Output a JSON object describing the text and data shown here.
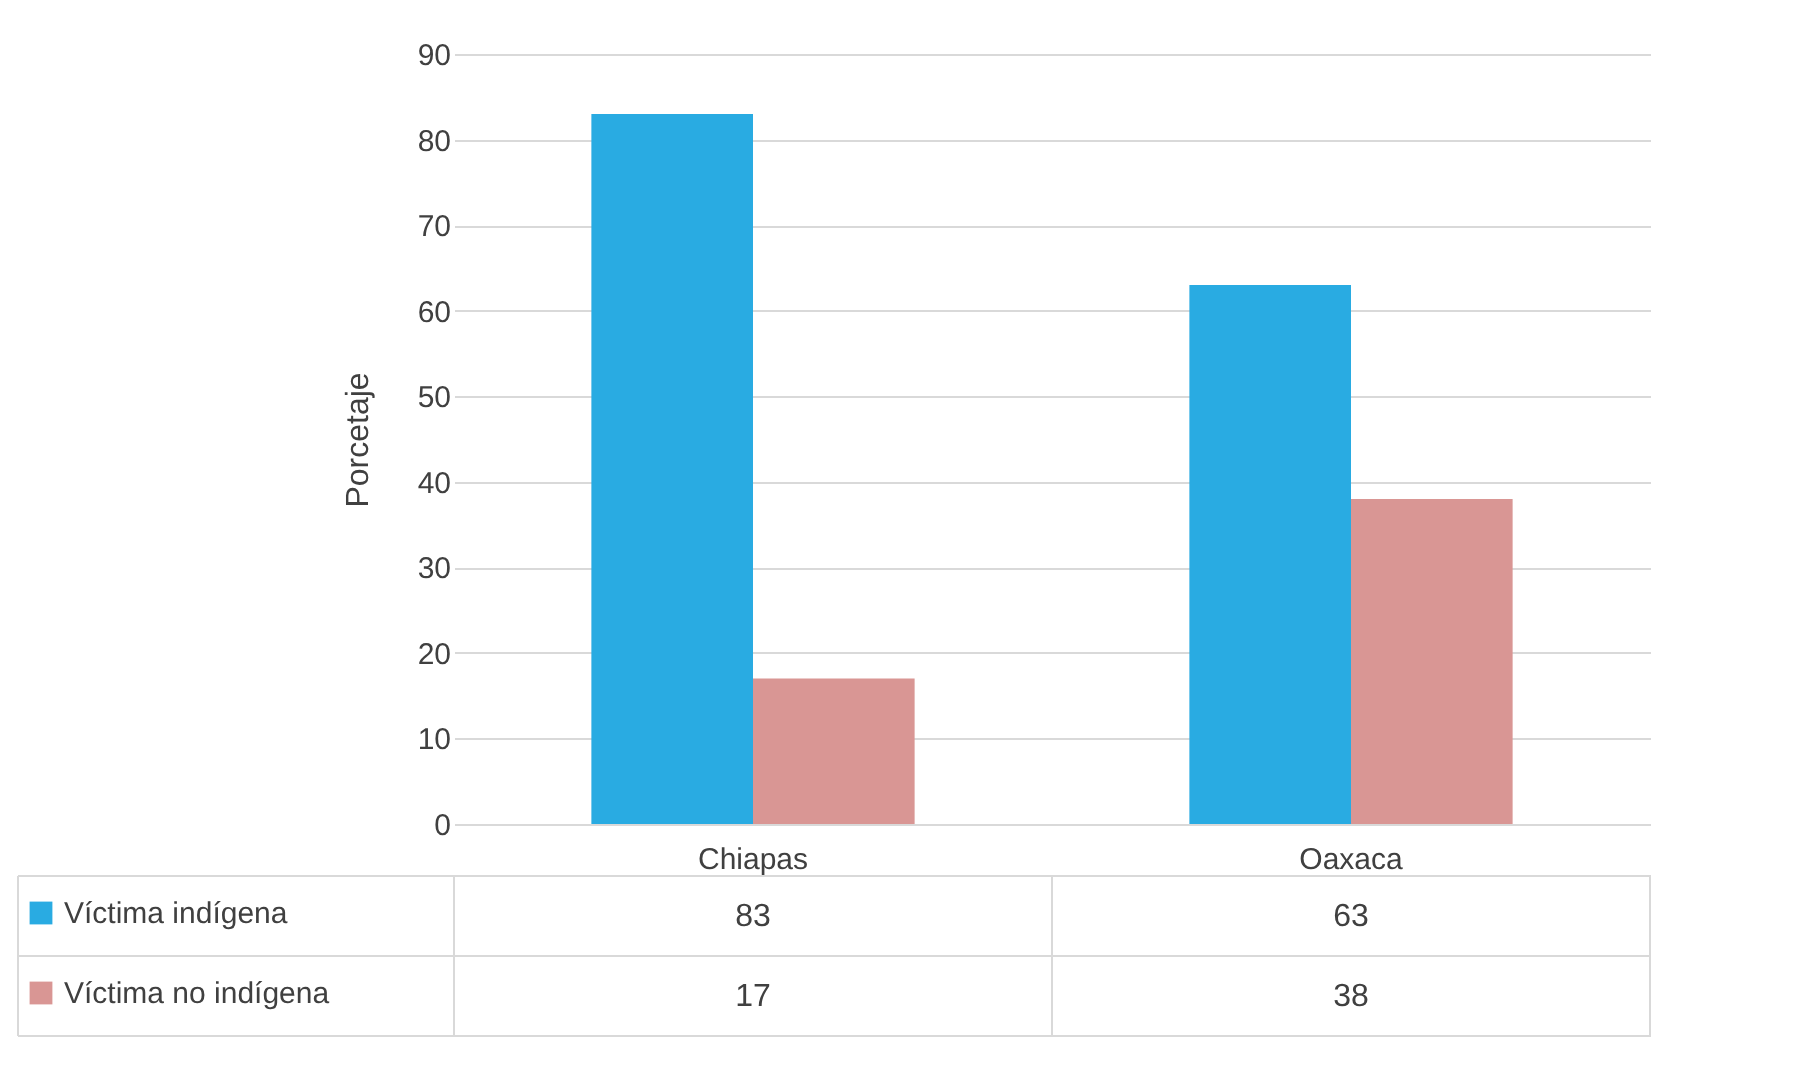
{
  "chart_data": {
    "type": "bar",
    "ylabel": "Porcetaje",
    "categories": [
      "Chiapas",
      "Oaxaca"
    ],
    "series": [
      {
        "name": "Víctima indígena",
        "color": "#29abe2",
        "values": [
          83,
          63
        ]
      },
      {
        "name": "Víctima no indígena",
        "color": "#d99694",
        "values": [
          17,
          38
        ]
      }
    ],
    "ylim": [
      0,
      90
    ],
    "yticks": [
      0,
      10,
      20,
      30,
      40,
      50,
      60,
      70,
      80,
      90
    ],
    "grid": "y",
    "legend": "bottom",
    "data_labels": true
  }
}
